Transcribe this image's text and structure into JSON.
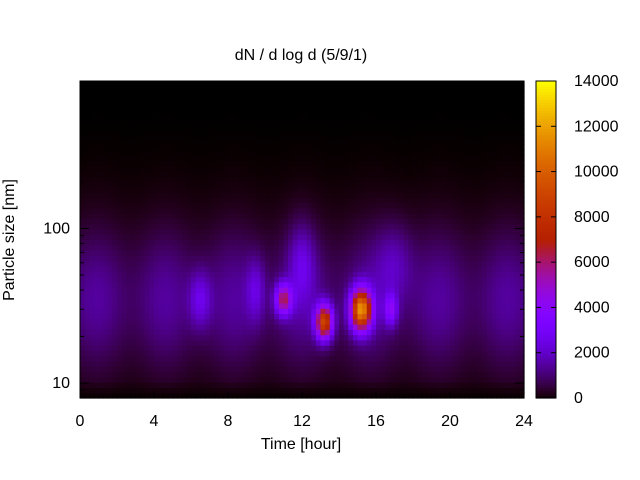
{
  "chart_data": {
    "type": "heatmap",
    "title": "dN / d log d (5/9/1)",
    "xlabel": "Time [hour]",
    "ylabel": "Particle size [nm]",
    "xlim": [
      0,
      24
    ],
    "ylim": [
      8,
      900
    ],
    "y_scale": "log",
    "x_ticks": [
      0,
      4,
      8,
      12,
      16,
      20,
      24
    ],
    "x_tick_labels": [
      "0",
      "4",
      "8",
      "12",
      "16",
      "20",
      "24"
    ],
    "y_ticks": [
      10,
      100
    ],
    "y_tick_labels": [
      "10",
      "100"
    ],
    "colorbar": {
      "range": [
        0,
        14000
      ],
      "ticks": [
        0,
        2000,
        4000,
        6000,
        8000,
        10000,
        12000,
        14000
      ],
      "tick_labels": [
        "0",
        "2000",
        "4000",
        "6000",
        "8000",
        "10000",
        "12000",
        "14000"
      ],
      "colormap": "gnuplot rgbformulae 7,5,15 (black-purple-red-yellow)"
    },
    "background_level": 1500,
    "features": [
      {
        "time_center": 11.0,
        "time_width": 0.45,
        "size_nm": 35,
        "log_width": 0.1,
        "peak": 5200
      },
      {
        "time_center": 13.2,
        "time_width": 0.45,
        "size_nm": 25,
        "log_width": 0.11,
        "peak": 8200
      },
      {
        "time_center": 15.2,
        "time_width": 0.55,
        "size_nm": 30,
        "log_width": 0.13,
        "peak": 10500
      },
      {
        "time_center": 16.8,
        "time_width": 0.35,
        "size_nm": 30,
        "log_width": 0.1,
        "peak": 3000
      },
      {
        "time_center": 6.5,
        "time_width": 0.6,
        "size_nm": 35,
        "log_width": 0.18,
        "peak": 1800
      },
      {
        "time_center": 9.5,
        "time_width": 0.5,
        "size_nm": 40,
        "log_width": 0.2,
        "peak": 1500
      },
      {
        "time_center": 12.0,
        "time_width": 0.7,
        "size_nm": 60,
        "log_width": 0.25,
        "peak": 1500
      },
      {
        "time_center": 17.0,
        "time_width": 1.0,
        "size_nm": 60,
        "log_width": 0.25,
        "peak": 1200
      }
    ]
  }
}
